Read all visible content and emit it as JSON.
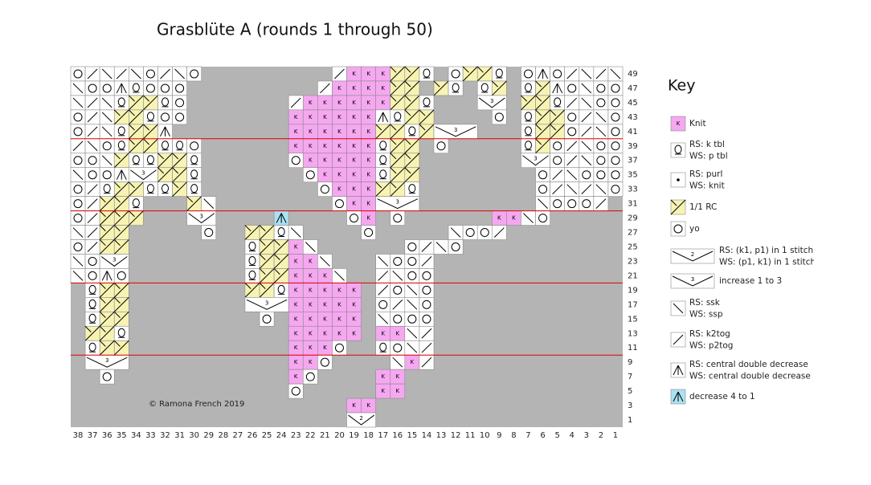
{
  "title": "Grasblüte A (rounds 1 through 50)",
  "copyright": "©  Ramona French 2019",
  "row_numbers": [
    49,
    47,
    45,
    43,
    41,
    39,
    37,
    35,
    33,
    31,
    29,
    27,
    25,
    23,
    21,
    19,
    17,
    15,
    13,
    11,
    9,
    7,
    5,
    3,
    1
  ],
  "column_numbers": [
    38,
    37,
    36,
    35,
    34,
    33,
    32,
    31,
    30,
    29,
    28,
    27,
    26,
    25,
    24,
    23,
    22,
    21,
    20,
    19,
    18,
    17,
    16,
    15,
    14,
    13,
    12,
    11,
    10,
    9,
    8,
    7,
    6,
    5,
    4,
    3,
    2,
    1
  ],
  "grid": [
    "oLRLRoLRo.........Lkkkccq.occq.o^oLRLR",
    "Roo^qooo.........LkkkkCC.Cq.qc.qc^oRooo",
    "RLRqccqo.......Lkkkkkkccq...vv.ccqLRoo",
    "oLRccqoo.......kkkkkk^qcc....o.qccoLRo",
    "oLRqcc^........kkkkkkccqcvvv...qccoLRo",
    "LRoqccqqo......kkkkkkqcc.o.....qcoLRoo",
    "ooRcqqccq......okkkkkqcc.......vvoLRoo",
    "Roo^vvccq.......okkkkqcc........oLRooo",
    "oLqccqqcq........okkkccq........oLRLRo",
    "oLccq...cR........okkvvv........RoooL.",
    "oLccc...vv....a....ok.o......kkRo.....",
    "RLcc.....o..ccqR....o.....RooL........",
    "oLcc........qcckR......oLRo...........",
    "Rovv........qcckkR...RooL.............",
    "Ro^o........qcckkkR..LRoo.............",
    ".qcc........ccqkkkkk.LoRo.............",
    ".qcc........vvvkkkkk.oLRo.............",
    ".qcc.........o.kkkkk.Rooo.............",
    ".ccq...........kkkkk.kkRL.............",
    ".qcc...........kkko..qoRL.............",
    ".vvv...........kko....RkL.............",
    "..o............ko....kk...............",
    "...............o.....kk...............",
    "...................kk.................",
    "...................ww................."
  ],
  "key": {
    "title": "Key",
    "items": [
      {
        "symbol": "k",
        "glyph": "K",
        "lines": [
          "Knit"
        ]
      },
      {
        "symbol": "q",
        "lines": [
          "RS: k tbl",
          "WS: p tbl"
        ]
      },
      {
        "symbol": "p",
        "lines": [
          "RS: purl",
          "WS: knit"
        ]
      },
      {
        "symbol": "c",
        "lines": [
          "1/1 RC"
        ]
      },
      {
        "symbol": "o",
        "lines": [
          "yo"
        ]
      },
      {
        "symbol": "w",
        "glyph": "2",
        "lines": [
          "RS: (k1, p1) in 1 stitch",
          "WS: (p1, k1) in 1 stitch"
        ]
      },
      {
        "symbol": "v",
        "glyph": "3",
        "lines": [
          "increase 1 to 3"
        ]
      },
      {
        "symbol": "R",
        "lines": [
          "RS: ssk",
          "WS: ssp"
        ]
      },
      {
        "symbol": "L",
        "lines": [
          "RS: k2tog",
          "WS: p2tog"
        ]
      },
      {
        "symbol": "^",
        "lines": [
          "RS: central double decrease",
          "WS: central double decrease p"
        ]
      },
      {
        "symbol": "a",
        "lines": [
          "decrease 4 to 1"
        ]
      }
    ]
  }
}
